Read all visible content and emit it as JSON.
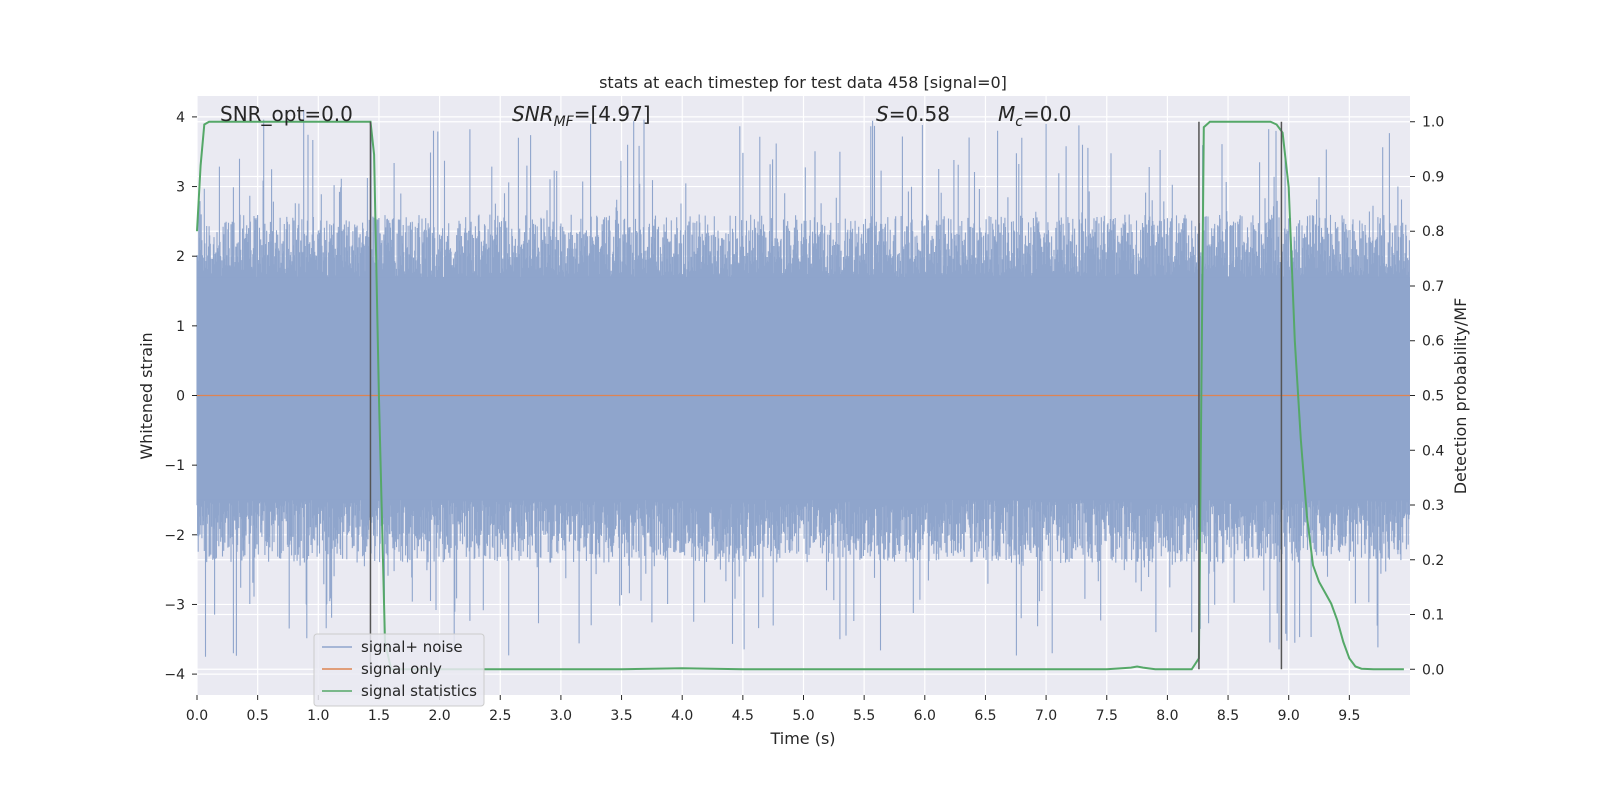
{
  "chart_data": {
    "type": "line",
    "title": "stats at each timestep for test data 458 [signal=0]",
    "xlabel": "Time (s)",
    "ylabel": "Whitened strain",
    "y2label": "Detection probability/MF",
    "xlim": [
      0.0,
      10.0
    ],
    "ylim": [
      -4.3,
      4.3
    ],
    "y2lim": [
      -0.047,
      1.047
    ],
    "x_ticks": [
      "0.0",
      "0.5",
      "1.0",
      "1.5",
      "2.0",
      "2.5",
      "3.0",
      "3.5",
      "4.0",
      "4.5",
      "5.0",
      "5.5",
      "6.0",
      "6.5",
      "7.0",
      "7.5",
      "8.0",
      "8.5",
      "9.0",
      "9.5"
    ],
    "y_ticks": [
      "4",
      "3",
      "2",
      "1",
      "0",
      "−1",
      "−2",
      "−3",
      "−4"
    ],
    "y2_ticks": [
      "1.0",
      "0.9",
      "0.8",
      "0.7",
      "0.6",
      "0.5",
      "0.4",
      "0.3",
      "0.2",
      "0.1",
      "0.0"
    ],
    "grid": true,
    "legend_position": "lower-left",
    "annotations": {
      "snr_opt": "SNR_opt=0.0",
      "snr_mf_main": "SNR",
      "snr_mf_sub": "MF",
      "snr_mf_value": "=[4.97]",
      "s_main": "S",
      "s_value": "=0.58",
      "mc_main": "M",
      "mc_sub": "c",
      "mc_value": "=0.0"
    },
    "series": [
      {
        "name": "signal+ noise",
        "color": "#8fa5cc",
        "description_of_values": "whitened noise strain, approx. uniform band between -1.5 and 1.7 with spikes up to ~4 and down to ~-3.8",
        "band": [
          -1.5,
          1.7
        ],
        "spikes": [
          [
            0.07,
            -3.75
          ],
          [
            0.3,
            -3.7
          ],
          [
            0.88,
            4.1
          ],
          [
            0.9,
            -3.0
          ],
          [
            1.68,
            2.9
          ],
          [
            1.95,
            3.8
          ],
          [
            2.65,
            3.7
          ],
          [
            3.25,
            -3.3
          ],
          [
            3.55,
            3.6
          ],
          [
            5.3,
            -3.5
          ],
          [
            5.3,
            3.5
          ],
          [
            6.6,
            3.8
          ],
          [
            6.8,
            3.7
          ],
          [
            7.05,
            -3.7
          ],
          [
            7.3,
            3.6
          ],
          [
            8.2,
            -3.4
          ],
          [
            9.05,
            -3.55
          ],
          [
            9.9,
            3.0
          ]
        ]
      },
      {
        "name": "signal only",
        "color": "#dd8452",
        "x": [
          0.0,
          10.0
        ],
        "y": [
          0.0,
          0.0
        ]
      },
      {
        "name": "signal statistics",
        "color": "#55a868",
        "axis": "right",
        "x": [
          0.0,
          0.03,
          0.06,
          0.1,
          0.2,
          0.5,
          1.0,
          1.3,
          1.38,
          1.43,
          1.46,
          1.5,
          1.55,
          1.6,
          2.0,
          3.0,
          3.5,
          4.0,
          4.5,
          5.0,
          6.0,
          7.0,
          7.5,
          7.7,
          7.75,
          7.8,
          7.9,
          8.0,
          8.2,
          8.26,
          8.3,
          8.35,
          8.4,
          8.6,
          8.8,
          8.85,
          8.9,
          8.95,
          9.0,
          9.05,
          9.1,
          9.15,
          9.2,
          9.25,
          9.3,
          9.35,
          9.4,
          9.45,
          9.5,
          9.55,
          9.6,
          9.7,
          9.8,
          9.95
        ],
        "y": [
          0.8,
          0.92,
          0.995,
          1.0,
          1.0,
          1.0,
          1.0,
          1.0,
          1.0,
          1.0,
          0.94,
          0.5,
          0.05,
          0.0,
          0.0,
          0.0,
          0.0,
          0.002,
          0.0,
          0.0,
          0.0,
          0.0,
          0.0,
          0.003,
          0.005,
          0.003,
          0.0,
          0.0,
          0.0,
          0.02,
          0.99,
          1.0,
          1.0,
          1.0,
          1.0,
          1.0,
          0.995,
          0.98,
          0.88,
          0.6,
          0.42,
          0.28,
          0.19,
          0.16,
          0.14,
          0.12,
          0.09,
          0.05,
          0.02,
          0.005,
          0.001,
          0.0,
          0.0,
          0.0
        ]
      }
    ],
    "vertical_lines_x": [
      1.43,
      8.26,
      8.94
    ]
  },
  "colors": {
    "plot_bg": "#eaeaf2",
    "grid": "#ffffff",
    "vline": "#555555"
  }
}
